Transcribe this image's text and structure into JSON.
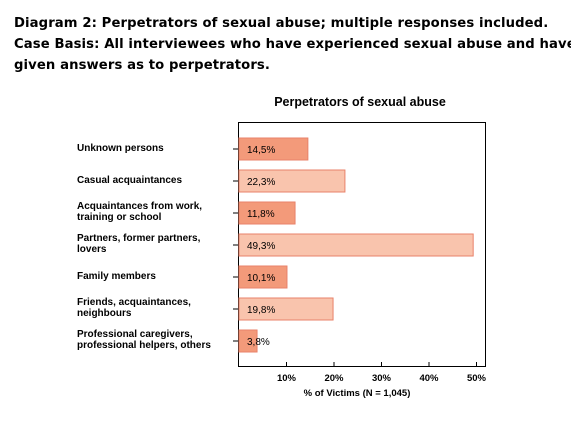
{
  "caption": {
    "line1": "Diagram 2: Perpetrators of sexual abuse; multiple responses included.",
    "line2": "Case Basis: All interviewees who have experienced sexual abuse and have",
    "line3": "given answers as to perpetrators."
  },
  "chart_data": {
    "type": "bar",
    "orientation": "horizontal",
    "title": "Perpetrators of sexual abuse",
    "xlabel": "% of Victims (N = 1,045)",
    "ylabel": "",
    "xlim": [
      0,
      50
    ],
    "xticks": [
      "10%",
      "20%",
      "30%",
      "40%",
      "50%"
    ],
    "xtick_values": [
      10,
      20,
      30,
      40,
      50
    ],
    "categories": [
      "Unknown persons",
      "Casual acquaintances",
      "Acquaintances from work, training or school",
      "Partners, former partners, lovers",
      "Family members",
      "Friends, acquaintances, neighbours",
      "Professional caregivers, professional helpers, others"
    ],
    "category_lines": [
      [
        "Unknown persons"
      ],
      [
        "Casual acquaintances"
      ],
      [
        "Acquaintances from work,",
        "training or school"
      ],
      [
        "Partners, former partners,",
        "lovers"
      ],
      [
        "Family members"
      ],
      [
        "Friends, acquaintances,",
        "neighbours"
      ],
      [
        "Professional caregivers,",
        "professional helpers, others"
      ]
    ],
    "values": [
      14.5,
      22.3,
      11.8,
      49.3,
      10.1,
      19.8,
      3.8
    ],
    "data_labels": [
      "14,5%",
      "22,3%",
      "11,8%",
      "49,3%",
      "10,1%",
      "19,8%",
      "3,8%"
    ],
    "bar_colors": [
      "#f39a7a",
      "#f9c4ad",
      "#f39a7a",
      "#f9c4ad",
      "#f39a7a",
      "#f9c4ad",
      "#f39a7a"
    ],
    "bar_stroke": "#e8826a",
    "grid": false
  }
}
